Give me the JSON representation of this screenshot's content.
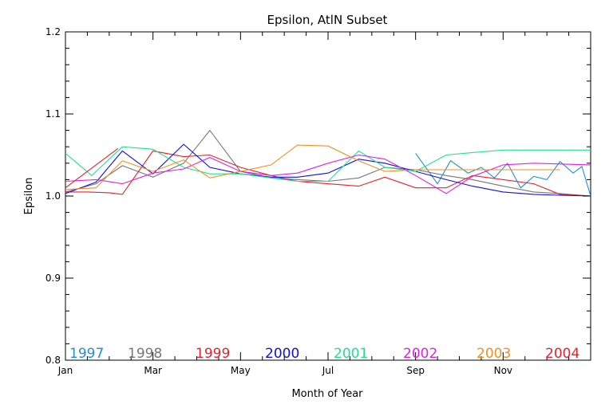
{
  "chart_data": {
    "type": "line",
    "title": "Epsilon, AtlN Subset",
    "xlabel": "Month of Year",
    "ylabel": "Epsilon",
    "xlim": [
      0,
      12
    ],
    "ylim": [
      0.8,
      1.2
    ],
    "x_ticks": [
      0,
      2,
      4,
      6,
      8,
      10
    ],
    "x_tick_labels": [
      "Jan",
      "Mar",
      "May",
      "Jul",
      "Sep",
      "Nov"
    ],
    "y_ticks": [
      0.8,
      0.9,
      1.0,
      1.1,
      1.2
    ],
    "y_tick_labels": [
      "0.8",
      "0.9",
      "1.0",
      "1.1",
      "1.2"
    ],
    "grid": false,
    "legend_placement": "bottom",
    "series": [
      {
        "name": "1997",
        "color": "#1e90d0",
        "x": [
          8.0,
          8.5,
          8.8,
          9.2,
          9.5,
          9.8,
          10.1,
          10.4,
          10.7,
          11.0,
          11.3,
          11.6,
          11.8,
          12.0
        ],
        "y": [
          1.052,
          1.015,
          1.043,
          1.028,
          1.035,
          1.022,
          1.04,
          1.01,
          1.024,
          1.02,
          1.042,
          1.028,
          1.036,
          1.0
        ]
      },
      {
        "name": "1998",
        "color": "#777777",
        "x": [
          0,
          0.7,
          1.3,
          2.0,
          2.7,
          3.3,
          4.0,
          4.7,
          5.3,
          6.0,
          6.7,
          7.3,
          8.0,
          8.7,
          9.3,
          10.0,
          10.7,
          11.3,
          12.0
        ],
        "y": [
          1.005,
          1.015,
          1.037,
          1.023,
          1.04,
          1.08,
          1.03,
          1.022,
          1.02,
          1.018,
          1.022,
          1.035,
          1.032,
          1.025,
          1.02,
          1.012,
          1.005,
          1.003,
          1.0
        ]
      },
      {
        "name": "1999",
        "color": "#e8202a",
        "x": [
          0,
          0.5,
          1.0,
          1.3,
          2.0,
          2.7,
          3.3,
          4.0,
          4.7,
          5.3,
          6.0,
          6.7,
          7.3,
          8.0,
          8.7,
          9.3,
          10.0,
          10.7,
          11.3,
          12.0
        ],
        "y": [
          1.005,
          1.005,
          1.004,
          1.002,
          1.055,
          1.048,
          1.05,
          1.035,
          1.025,
          1.018,
          1.015,
          1.012,
          1.023,
          1.01,
          1.01,
          1.025,
          1.02,
          1.015,
          1.002,
          1.0
        ]
      },
      {
        "name": "2000",
        "color": "#1010e0",
        "x": [
          0,
          0.7,
          1.3,
          2.0,
          2.7,
          3.3,
          4.0,
          4.7,
          5.3,
          6.0,
          6.7,
          7.3,
          8.0,
          8.7,
          9.3,
          10.0,
          10.7,
          11.3,
          12.0
        ],
        "y": [
          1.003,
          1.017,
          1.055,
          1.027,
          1.063,
          1.035,
          1.027,
          1.023,
          1.023,
          1.028,
          1.045,
          1.04,
          1.03,
          1.02,
          1.012,
          1.005,
          1.002,
          1.001,
          1.0
        ]
      },
      {
        "name": "2001",
        "color": "#20e090",
        "x": [
          0,
          0.6,
          1.3,
          2.0,
          2.7,
          3.3,
          4.0,
          4.7,
          5.3,
          6.0,
          6.7,
          7.3,
          8.0,
          8.7,
          9.3,
          10.0,
          10.7,
          11.3,
          12.0
        ],
        "y": [
          1.052,
          1.025,
          1.06,
          1.057,
          1.035,
          1.027,
          1.027,
          1.022,
          1.018,
          1.018,
          1.055,
          1.035,
          1.03,
          1.05,
          1.053,
          1.056,
          1.056,
          1.056,
          1.056
        ]
      },
      {
        "name": "2002",
        "color": "#e020e0",
        "x": [
          0,
          0.7,
          1.3,
          2.0,
          2.7,
          3.3,
          4.0,
          4.7,
          5.3,
          6.0,
          6.7,
          7.3,
          8.0,
          8.7,
          9.3,
          10.0,
          10.7,
          11.3,
          12.0
        ],
        "y": [
          1.018,
          1.02,
          1.015,
          1.028,
          1.033,
          1.047,
          1.03,
          1.025,
          1.028,
          1.04,
          1.05,
          1.045,
          1.025,
          1.003,
          1.024,
          1.038,
          1.04,
          1.039,
          1.038
        ]
      },
      {
        "name": "2003",
        "color": "#f09020",
        "x": [
          0,
          0.7,
          1.3,
          2.0,
          2.7,
          3.3,
          4.0,
          4.7,
          5.3,
          6.0,
          6.7,
          7.3,
          8.0,
          8.7,
          9.3,
          10.0,
          10.7,
          11.3
        ],
        "y": [
          1.008,
          1.01,
          1.043,
          1.03,
          1.044,
          1.022,
          1.03,
          1.038,
          1.062,
          1.061,
          1.043,
          1.03,
          1.032,
          1.032,
          1.032,
          1.032,
          1.032,
          1.032
        ]
      },
      {
        "name": "2004",
        "color": "#e8202a",
        "x": [
          0,
          1.2
        ],
        "y": [
          1.01,
          1.058
        ]
      }
    ]
  }
}
